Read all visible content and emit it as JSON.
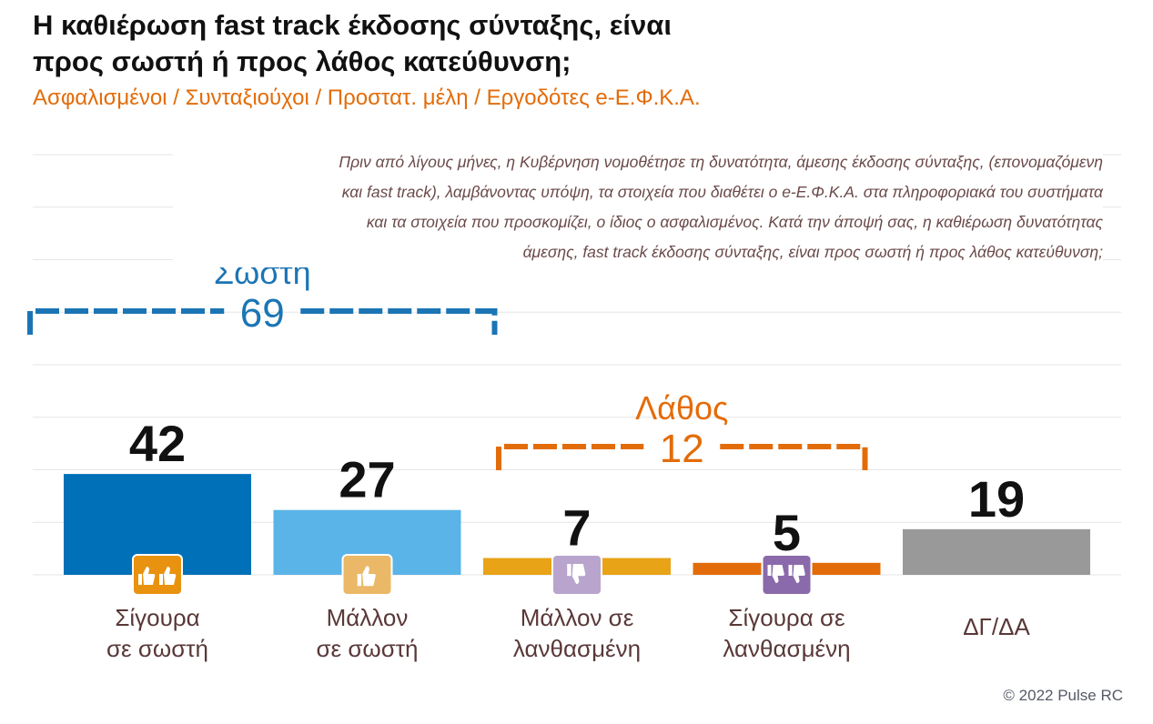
{
  "chart_data": {
    "type": "bar",
    "title": "Η καθιέρωση fast track έκδοσης σύνταξης, είναι προς σωστή ή προς λάθος κατεύθυνση;",
    "title_lines": [
      "Η καθιέρωση fast track έκδοσης σύνταξης, είναι",
      "προς σωστή ή προς λάθος κατεύθυνση;"
    ],
    "subtitle": "Ασφαλισμένοι / Συνταξιούχοι / Προστατ. μέλη / Εργοδότες e-Ε.Φ.Κ.Α.",
    "question_lines": [
      "Πριν από λίγους μήνες, η Κυβέρνηση νομοθέτησε τη δυνατότητα, άμεσης έκδοσης σύνταξης, (επονομαζόμενη",
      "και fast track), λαμβάνοντας υπόψη, τα στοιχεία που διαθέτει ο e-Ε.Φ.Κ.Α. στα πληροφοριακά του συστήματα",
      "και τα στοιχεία που προσκομίζει, ο ίδιος ο ασφαλισμένος. Κατά την άποψή σας, η καθιέρωση δυνατότητας",
      "άμεσης, fast track έκδοσης σύνταξης, είναι προς σωστή  ή  προς λάθος κατεύθυνση;"
    ],
    "categories": [
      [
        "Σίγουρα",
        "σε σωστή"
      ],
      [
        "Μάλλον",
        "σε σωστή"
      ],
      [
        "Μάλλον σε",
        "λανθασμένη"
      ],
      [
        "Σίγουρα σε",
        "λανθασμένη"
      ],
      [
        "ΔΓ/ΔΑ"
      ]
    ],
    "values": [
      42,
      27,
      7,
      5,
      19
    ],
    "colors": [
      "#0070b8",
      "#5ab4e8",
      "#e8a317",
      "#e36c0a",
      "#999999"
    ],
    "icons": [
      "thumbs-up-double-icon",
      "thumbs-up-icon",
      "thumbs-down-icon",
      "thumbs-down-double-icon",
      null
    ],
    "icon_colors": [
      "#e8920f",
      "#eab866",
      "#b8a4cc",
      "#8a6aaa",
      null
    ],
    "groups": [
      {
        "label": "Σωστή",
        "total": "69",
        "color": "#1b75b5",
        "from": 0,
        "to": 1
      },
      {
        "label": "Λάθος",
        "total": "12",
        "color": "#e36c0a",
        "from": 2,
        "to": 3
      }
    ],
    "ylim": [
      0,
      100
    ],
    "grid": true,
    "xlabel": "",
    "ylabel": ""
  },
  "footer": {
    "copyright": "© 2022 Pulse RC"
  }
}
